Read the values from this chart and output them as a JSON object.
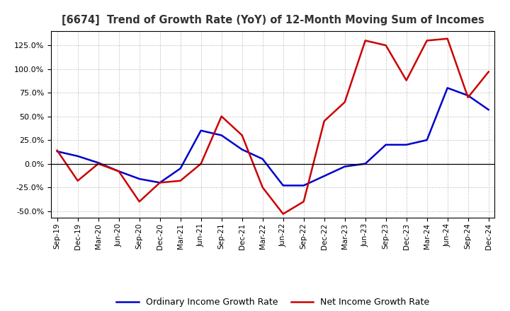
{
  "title": "[6674]  Trend of Growth Rate (YoY) of 12-Month Moving Sum of Incomes",
  "labels": [
    "Sep-19",
    "Dec-19",
    "Mar-20",
    "Jun-20",
    "Sep-20",
    "Dec-20",
    "Mar-21",
    "Jun-21",
    "Sep-21",
    "Dec-21",
    "Mar-22",
    "Jun-22",
    "Sep-22",
    "Dec-22",
    "Mar-23",
    "Jun-23",
    "Sep-23",
    "Dec-23",
    "Mar-24",
    "Jun-24",
    "Sep-24",
    "Dec-24"
  ],
  "ordinary_income": [
    13,
    8,
    1,
    -8,
    -16,
    -20,
    -5,
    35,
    30,
    15,
    5,
    -23,
    -23,
    -13,
    -3,
    0,
    20,
    20,
    25,
    80,
    72,
    57
  ],
  "net_income": [
    14,
    -18,
    0,
    -8,
    -40,
    -20,
    -18,
    0,
    50,
    30,
    -25,
    -53,
    -40,
    45,
    65,
    130,
    125,
    88,
    130,
    132,
    70,
    97
  ],
  "ordinary_color": "#0000cc",
  "net_color": "#cc0000",
  "ylim": [
    -57,
    140
  ],
  "yticks": [
    -50,
    -25,
    0,
    25,
    50,
    75,
    100,
    125
  ],
  "background_color": "#ffffff",
  "grid_color": "#888888",
  "legend_ordinary": "Ordinary Income Growth Rate",
  "legend_net": "Net Income Growth Rate",
  "linewidth": 1.8
}
